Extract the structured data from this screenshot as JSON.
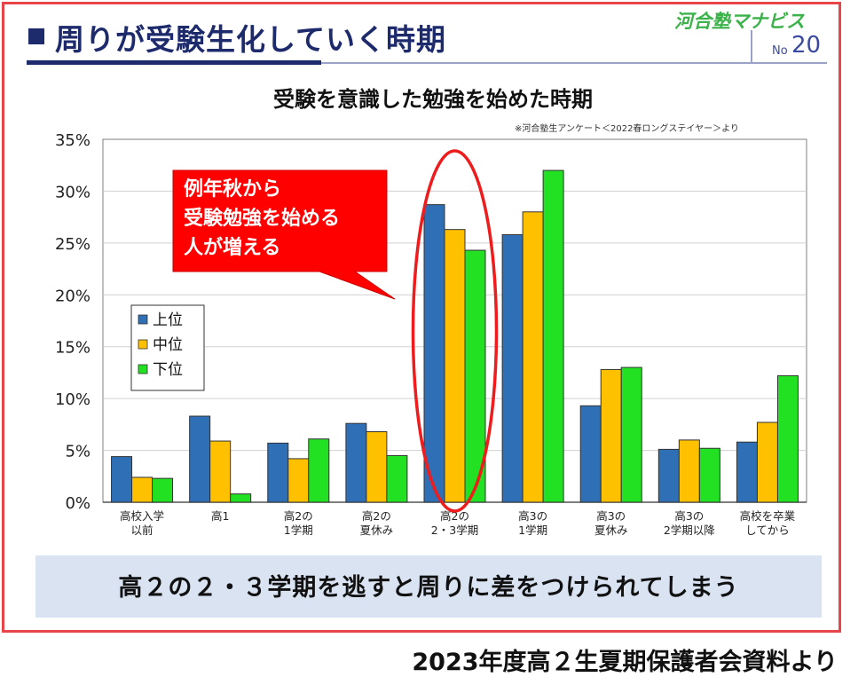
{
  "header": {
    "title": "周りが受験生化していく時期",
    "brand": "河合塾マナビス",
    "issue_prefix": "No",
    "issue_number": "20"
  },
  "source_note": "※河合塾生アンケート＜2022春ロングステイヤー＞より",
  "callout": {
    "lines": [
      "例年秋から",
      "受験勉強を始める",
      "人が増える"
    ],
    "color": "#ff0000"
  },
  "bottom_message": "高２の２・３学期を逃すと周りに差をつけられてしまう",
  "footer_note": "2023年度高２生夏期保護者会資料より",
  "colors": {
    "frame": "#e8454a",
    "header": "#1d2a6b",
    "highlight_ellipse": "#ee1c1c",
    "banner": "#d9e3f2"
  },
  "chart_data": {
    "type": "bar",
    "title": "受験を意識した勉強を始めた時期",
    "xlabel": "",
    "ylabel": "",
    "ylim": [
      0,
      35
    ],
    "yticks": [
      "0%",
      "5%",
      "10%",
      "15%",
      "20%",
      "25%",
      "30%",
      "35%"
    ],
    "grid": true,
    "legend_position": "left-middle",
    "categories": [
      [
        "高校入学",
        "以前"
      ],
      [
        "高1"
      ],
      [
        "高2の",
        "1学期"
      ],
      [
        "高2の",
        "夏休み"
      ],
      [
        "高2の",
        "2・3学期"
      ],
      [
        "高3の",
        "1学期"
      ],
      [
        "高3の",
        "夏休み"
      ],
      [
        "高3の",
        "2学期以降"
      ],
      [
        "高校を卒業",
        "してから"
      ]
    ],
    "series": [
      {
        "name": "上位",
        "color": "#2e6fb5",
        "values": [
          4.4,
          8.3,
          5.7,
          7.6,
          28.7,
          25.8,
          9.3,
          5.1,
          5.8
        ]
      },
      {
        "name": "中位",
        "color": "#ffc000",
        "values": [
          2.4,
          5.9,
          4.2,
          6.8,
          26.3,
          28.0,
          12.8,
          6.0,
          7.7
        ]
      },
      {
        "name": "下位",
        "color": "#22e022",
        "values": [
          2.3,
          0.8,
          6.1,
          4.5,
          24.3,
          32.0,
          13.0,
          5.2,
          12.2
        ]
      }
    ],
    "highlight_category_index": 4
  }
}
